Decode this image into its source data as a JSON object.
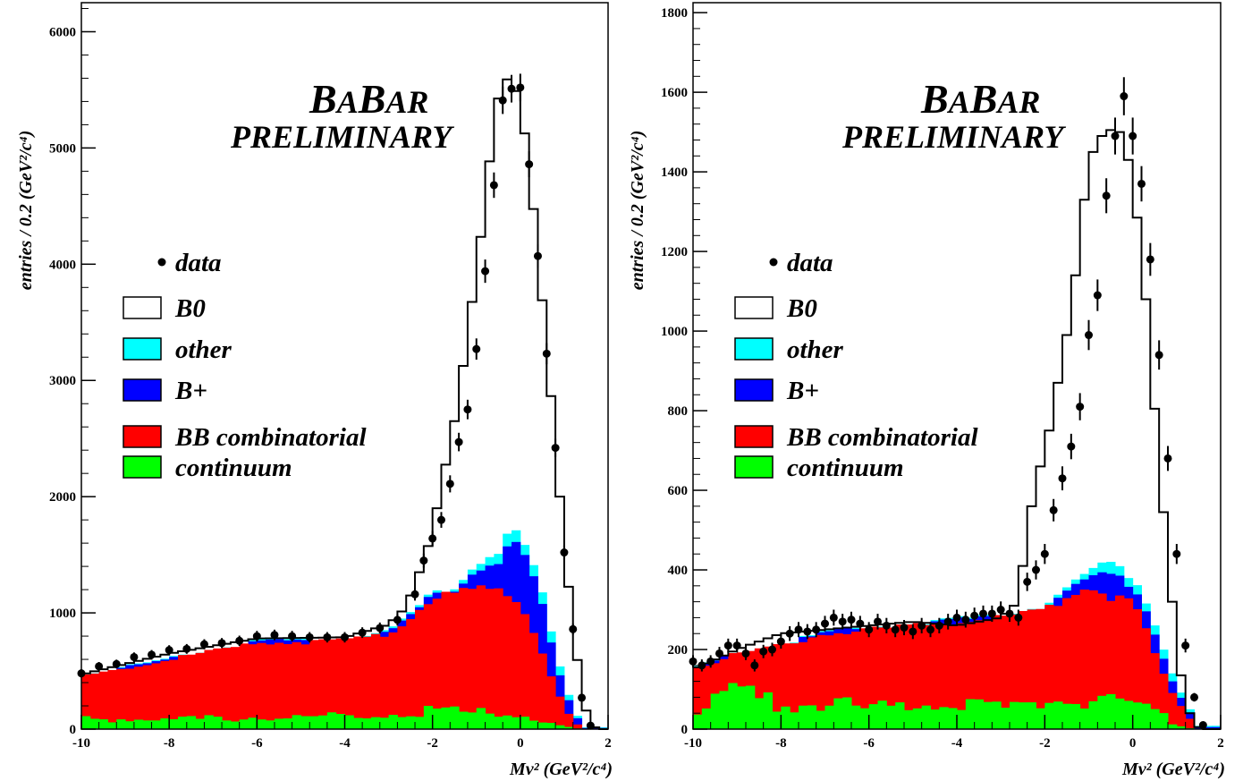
{
  "chart_data": [
    {
      "type": "bar",
      "stacked": true,
      "xlim": [
        -10,
        2
      ],
      "ylim": [
        0,
        6250
      ],
      "bin_width": 0.2,
      "x_ticks": [
        -10,
        -8,
        -6,
        -4,
        -2,
        0,
        2
      ],
      "y_ticks": [
        0,
        1000,
        2000,
        3000,
        4000,
        5000,
        6000
      ],
      "ylabel": "entries / 0.2 (GeV²/c⁴)",
      "xlabel": "Mν² (GeV²/c⁴)",
      "logo": "BABAR",
      "stamp": "PRELIMINARY",
      "legend": [
        "data",
        "B0",
        "other",
        "B+",
        "BB combinatorial",
        "continuum"
      ],
      "colors": {
        "B0": "#ffffff",
        "other": "#00ffff",
        "Bplus": "#0000ff",
        "BB": "#ff0000",
        "continuum": "#00ff00"
      },
      "grid": false,
      "legend_position": "middle-left",
      "series": {
        "continuum": [
          [
            -10,
            90
          ],
          [
            -8,
            80
          ],
          [
            -6,
            100
          ],
          [
            -4,
            110
          ],
          [
            -2,
            160
          ],
          [
            0,
            120
          ],
          [
            0.6,
            60
          ],
          [
            1.0,
            20
          ],
          [
            1.4,
            0
          ]
        ],
        "bb_total": [
          [
            -10,
            450
          ],
          [
            -8,
            600
          ],
          [
            -6,
            740
          ],
          [
            -4,
            760
          ],
          [
            -3,
            820
          ],
          [
            -2,
            1120
          ],
          [
            -1.5,
            1170
          ],
          [
            -1,
            1210
          ],
          [
            -0.5,
            1200
          ],
          [
            0,
            1070
          ],
          [
            0.4,
            770
          ],
          [
            0.8,
            360
          ],
          [
            1.2,
            60
          ],
          [
            1.5,
            0
          ]
        ],
        "bplus_total": [
          [
            -10,
            452
          ],
          [
            -8,
            602
          ],
          [
            -6,
            745
          ],
          [
            -4,
            770
          ],
          [
            -3,
            830
          ],
          [
            -2,
            1140
          ],
          [
            -1.5,
            1200
          ],
          [
            -1,
            1370
          ],
          [
            -0.5,
            1460
          ],
          [
            -0.2,
            1650
          ],
          [
            0,
            1560
          ],
          [
            0.4,
            1220
          ],
          [
            0.8,
            560
          ],
          [
            1.2,
            140
          ],
          [
            1.5,
            10
          ]
        ],
        "other_total": [
          [
            -10,
            458
          ],
          [
            -8,
            610
          ],
          [
            -6,
            755
          ],
          [
            -4,
            780
          ],
          [
            -3,
            845
          ],
          [
            -2,
            1160
          ],
          [
            -1.5,
            1220
          ],
          [
            -1,
            1420
          ],
          [
            -0.5,
            1550
          ],
          [
            -0.2,
            1770
          ],
          [
            0,
            1640
          ],
          [
            0.4,
            1320
          ],
          [
            0.8,
            650
          ],
          [
            1.2,
            170
          ],
          [
            1.5,
            15
          ]
        ],
        "b0_total": [
          [
            -10,
            470
          ],
          [
            -8,
            650
          ],
          [
            -6,
            780
          ],
          [
            -4,
            790
          ],
          [
            -3,
            900
          ],
          [
            -2.6,
            1050
          ],
          [
            -2.2,
            1450
          ],
          [
            -2,
            1700
          ],
          [
            -1.8,
            2100
          ],
          [
            -1.6,
            2450
          ],
          [
            -1.4,
            2850
          ],
          [
            -1.2,
            3400
          ],
          [
            -1,
            3950
          ],
          [
            -0.8,
            4520
          ],
          [
            -0.6,
            5250
          ],
          [
            -0.4,
            5600
          ],
          [
            -0.2,
            5580
          ],
          [
            0,
            5400
          ],
          [
            0.2,
            4850
          ],
          [
            0.4,
            4100
          ],
          [
            0.6,
            3280
          ],
          [
            0.8,
            2450
          ],
          [
            1.0,
            1550
          ],
          [
            1.2,
            900
          ],
          [
            1.4,
            290
          ],
          [
            1.6,
            30
          ],
          [
            1.8,
            0
          ]
        ],
        "data": [
          [
            -10,
            480
          ],
          [
            -9.6,
            540
          ],
          [
            -9.2,
            560
          ],
          [
            -8.8,
            620
          ],
          [
            -8.4,
            640
          ],
          [
            -8,
            680
          ],
          [
            -7.6,
            690
          ],
          [
            -7.2,
            730
          ],
          [
            -6.8,
            740
          ],
          [
            -6.4,
            760
          ],
          [
            -6,
            800
          ],
          [
            -5.6,
            810
          ],
          [
            -5.2,
            800
          ],
          [
            -4.8,
            790
          ],
          [
            -4.4,
            790
          ],
          [
            -4,
            790
          ],
          [
            -3.6,
            830
          ],
          [
            -3.2,
            870
          ],
          [
            -2.8,
            940
          ],
          [
            -2.4,
            1160
          ],
          [
            -2.2,
            1450
          ],
          [
            -2,
            1640
          ],
          [
            -1.8,
            1800
          ],
          [
            -1.6,
            2110
          ],
          [
            -1.4,
            2470
          ],
          [
            -1.2,
            2750
          ],
          [
            -1,
            3270
          ],
          [
            -0.8,
            3940
          ],
          [
            -0.6,
            4680
          ],
          [
            -0.4,
            5410
          ],
          [
            -0.2,
            5510
          ],
          [
            0,
            5520
          ],
          [
            0.2,
            4860
          ],
          [
            0.4,
            4070
          ],
          [
            0.6,
            3230
          ],
          [
            0.8,
            2420
          ],
          [
            1.0,
            1520
          ],
          [
            1.2,
            860
          ],
          [
            1.4,
            270
          ],
          [
            1.6,
            30
          ]
        ]
      }
    },
    {
      "type": "bar",
      "stacked": true,
      "xlim": [
        -10,
        2
      ],
      "ylim": [
        0,
        1825
      ],
      "bin_width": 0.2,
      "x_ticks": [
        -10,
        -8,
        -6,
        -4,
        -2,
        0,
        2
      ],
      "y_ticks": [
        0,
        200,
        400,
        600,
        800,
        1000,
        1200,
        1400,
        1600,
        1800
      ],
      "ylabel": "entries / 0.2 (GeV²/c⁴)",
      "xlabel": "Mν² (GeV²/c⁴)",
      "logo": "BABAR",
      "stamp": "PRELIMINARY",
      "legend": [
        "data",
        "B0",
        "other",
        "B+",
        "BB combinatorial",
        "continuum"
      ],
      "colors": {
        "B0": "#ffffff",
        "other": "#00ffff",
        "Bplus": "#0000ff",
        "BB": "#ff0000",
        "continuum": "#00ff00"
      },
      "grid": false,
      "legend_position": "middle-left",
      "series": {
        "continuum": [
          [
            -10,
            50
          ],
          [
            -9,
            90
          ],
          [
            -8,
            60
          ],
          [
            -7,
            70
          ],
          [
            -6,
            50
          ],
          [
            -5,
            60
          ],
          [
            -4,
            70
          ],
          [
            -3,
            50
          ],
          [
            -2,
            70
          ],
          [
            -1,
            80
          ],
          [
            0,
            60
          ],
          [
            0.6,
            40
          ],
          [
            1.0,
            10
          ],
          [
            1.4,
            0
          ]
        ],
        "bb_total": [
          [
            -10,
            150
          ],
          [
            -9,
            190
          ],
          [
            -8,
            210
          ],
          [
            -7,
            240
          ],
          [
            -6,
            250
          ],
          [
            -5,
            260
          ],
          [
            -4,
            270
          ],
          [
            -3,
            280
          ],
          [
            -2,
            300
          ],
          [
            -1.5,
            330
          ],
          [
            -1,
            360
          ],
          [
            -0.5,
            330
          ],
          [
            0,
            320
          ],
          [
            0.3,
            250
          ],
          [
            0.6,
            160
          ],
          [
            0.9,
            90
          ],
          [
            1.2,
            40
          ],
          [
            1.5,
            0
          ]
        ],
        "bplus_total": [
          [
            -10,
            151
          ],
          [
            -9,
            191
          ],
          [
            -8,
            211
          ],
          [
            -7,
            242
          ],
          [
            -6,
            252
          ],
          [
            -5,
            262
          ],
          [
            -4,
            273
          ],
          [
            -3,
            284
          ],
          [
            -2,
            305
          ],
          [
            -1.5,
            340
          ],
          [
            -1,
            380
          ],
          [
            -0.5,
            390
          ],
          [
            -0.2,
            370
          ],
          [
            0,
            360
          ],
          [
            0.3,
            300
          ],
          [
            0.6,
            210
          ],
          [
            0.9,
            120
          ],
          [
            1.2,
            60
          ],
          [
            1.5,
            5
          ]
        ],
        "other_total": [
          [
            -10,
            153
          ],
          [
            -9,
            193
          ],
          [
            -8,
            213
          ],
          [
            -7,
            245
          ],
          [
            -6,
            255
          ],
          [
            -5,
            265
          ],
          [
            -4,
            276
          ],
          [
            -3,
            288
          ],
          [
            -2,
            312
          ],
          [
            -1.5,
            348
          ],
          [
            -1,
            395
          ],
          [
            -0.5,
            420
          ],
          [
            -0.2,
            390
          ],
          [
            0,
            385
          ],
          [
            0.3,
            320
          ],
          [
            0.6,
            235
          ],
          [
            0.9,
            140
          ],
          [
            1.2,
            70
          ],
          [
            1.5,
            8
          ]
        ],
        "b0_total": [
          [
            -10,
            150
          ],
          [
            -9,
            200
          ],
          [
            -8,
            240
          ],
          [
            -7,
            250
          ],
          [
            -6,
            260
          ],
          [
            -5,
            270
          ],
          [
            -4,
            260
          ],
          [
            -3,
            280
          ],
          [
            -2.6,
            320
          ],
          [
            -2.4,
            500
          ],
          [
            -2.2,
            620
          ],
          [
            -2,
            700
          ],
          [
            -1.8,
            800
          ],
          [
            -1.6,
            940
          ],
          [
            -1.4,
            1040
          ],
          [
            -1.2,
            1240
          ],
          [
            -1,
            1420
          ],
          [
            -0.8,
            1480
          ],
          [
            -0.6,
            1500
          ],
          [
            -0.4,
            1510
          ],
          [
            -0.2,
            1490
          ],
          [
            0,
            1370
          ],
          [
            0.2,
            1200
          ],
          [
            0.4,
            960
          ],
          [
            0.6,
            650
          ],
          [
            0.8,
            440
          ],
          [
            1.0,
            200
          ],
          [
            1.2,
            70
          ],
          [
            1.4,
            10
          ],
          [
            1.6,
            0
          ]
        ],
        "data": [
          [
            -10,
            170
          ],
          [
            -9.8,
            160
          ],
          [
            -9.6,
            170
          ],
          [
            -9.4,
            190
          ],
          [
            -9.2,
            210
          ],
          [
            -9,
            210
          ],
          [
            -8.8,
            190
          ],
          [
            -8.6,
            160
          ],
          [
            -8.4,
            195
          ],
          [
            -8.2,
            200
          ],
          [
            -8,
            220
          ],
          [
            -7.8,
            240
          ],
          [
            -7.6,
            250
          ],
          [
            -7.4,
            245
          ],
          [
            -7.2,
            250
          ],
          [
            -7,
            265
          ],
          [
            -6.8,
            280
          ],
          [
            -6.6,
            270
          ],
          [
            -6.4,
            275
          ],
          [
            -6.2,
            265
          ],
          [
            -6,
            250
          ],
          [
            -5.8,
            270
          ],
          [
            -5.6,
            260
          ],
          [
            -5.4,
            250
          ],
          [
            -5.2,
            255
          ],
          [
            -5,
            245
          ],
          [
            -4.8,
            260
          ],
          [
            -4.6,
            250
          ],
          [
            -4.4,
            260
          ],
          [
            -4.2,
            270
          ],
          [
            -4,
            280
          ],
          [
            -3.8,
            275
          ],
          [
            -3.6,
            285
          ],
          [
            -3.4,
            290
          ],
          [
            -3.2,
            290
          ],
          [
            -3,
            300
          ],
          [
            -2.8,
            290
          ],
          [
            -2.6,
            280
          ],
          [
            -2.4,
            370
          ],
          [
            -2.2,
            400
          ],
          [
            -2,
            440
          ],
          [
            -1.8,
            550
          ],
          [
            -1.6,
            630
          ],
          [
            -1.4,
            710
          ],
          [
            -1.2,
            810
          ],
          [
            -1,
            990
          ],
          [
            -0.8,
            1090
          ],
          [
            -0.6,
            1340
          ],
          [
            -0.4,
            1490
          ],
          [
            -0.2,
            1590
          ],
          [
            0,
            1490
          ],
          [
            0.2,
            1370
          ],
          [
            0.4,
            1180
          ],
          [
            0.6,
            940
          ],
          [
            0.8,
            680
          ],
          [
            1.0,
            440
          ],
          [
            1.2,
            210
          ],
          [
            1.4,
            80
          ],
          [
            1.6,
            10
          ]
        ]
      }
    }
  ]
}
